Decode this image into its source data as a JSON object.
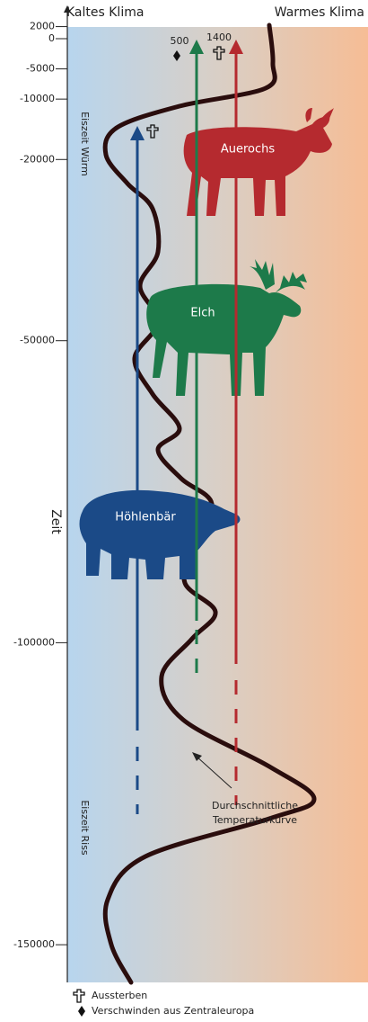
{
  "header": {
    "left": "Kaltes Klima",
    "right": "Warmes Klima"
  },
  "axis": {
    "label": "Zeit",
    "ticks": [
      2000,
      0,
      -5000,
      -10000,
      -20000,
      -50000,
      -100000,
      -150000
    ]
  },
  "eras": [
    "Eiszeit Würm",
    "Eiszeit Riss"
  ],
  "animals": [
    {
      "name": "Auerochs",
      "label": 1400
    },
    {
      "name": "Elch",
      "label": 500
    },
    {
      "name": "Höhlenbär"
    }
  ],
  "annotation": [
    "Durchschnittliche",
    "Temperaturkurve"
  ],
  "legend": [
    "Aussterben",
    "Verschwinden aus Zentraleuropa"
  ]
}
